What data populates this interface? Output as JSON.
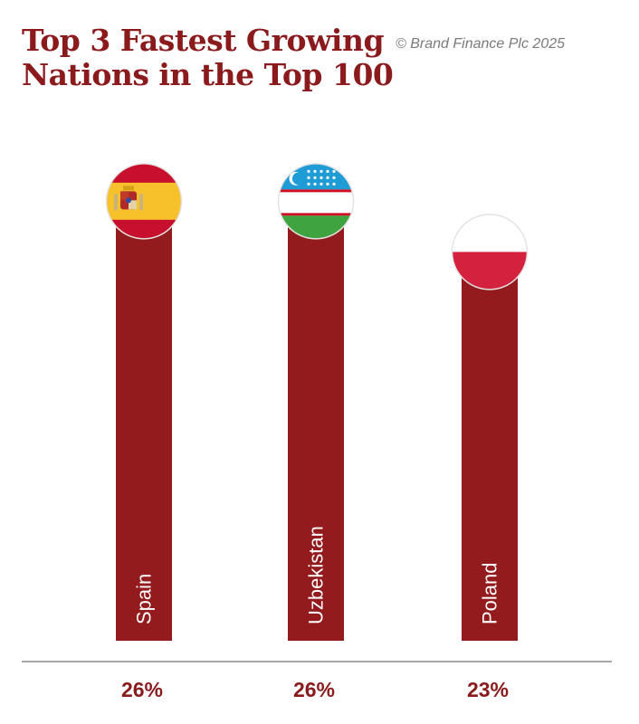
{
  "header": {
    "title_line1": "Top 3 Fastest Growing",
    "title_line2": "Nations in the Top 100",
    "copyright": "© Brand Finance Plc 2025"
  },
  "colors": {
    "bar": "#931b1d",
    "text": "#8b1a1d",
    "axis": "#8a8a8a"
  },
  "chart_data": {
    "type": "bar",
    "title": "Top 3 Fastest Growing Nations in the Top 100",
    "categories": [
      "Spain",
      "Uzbekistan",
      "Poland"
    ],
    "values": [
      26,
      26,
      23
    ],
    "value_labels": [
      "26%",
      "26%",
      "23%"
    ],
    "unit": "%",
    "flags": [
      "spain-flag",
      "uzbekistan-flag",
      "poland-flag"
    ],
    "ylim": [
      0,
      28
    ],
    "grid": false,
    "legend": "none"
  }
}
